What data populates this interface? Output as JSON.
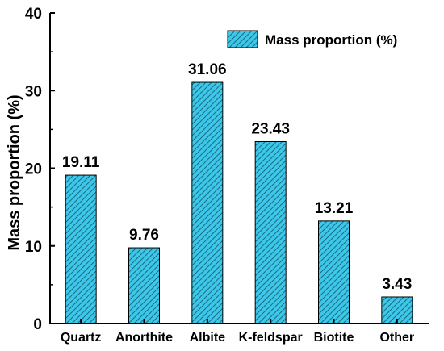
{
  "chart_data": {
    "type": "bar",
    "title": "",
    "xlabel": "",
    "ylabel": "Mass proportion (%)",
    "ylim": [
      0,
      40
    ],
    "yticks": [
      0,
      10,
      20,
      30,
      40
    ],
    "categories": [
      "Quartz",
      "Anorthite",
      "Albite",
      "K-feldspar",
      "Biotite",
      "Other"
    ],
    "series": [
      {
        "name": "Mass proportion (%)",
        "values": [
          19.11,
          9.76,
          31.06,
          23.43,
          13.21,
          3.43
        ],
        "labels": [
          "19.11",
          "9.76",
          "31.06",
          "23.43",
          "13.21",
          "3.43"
        ]
      }
    ],
    "bar_fill": "#3cc8e8",
    "bar_hatch": "#1e6e88",
    "bar_pattern": "diagonal-hatch",
    "grid": false,
    "legend_position": "top-right"
  }
}
